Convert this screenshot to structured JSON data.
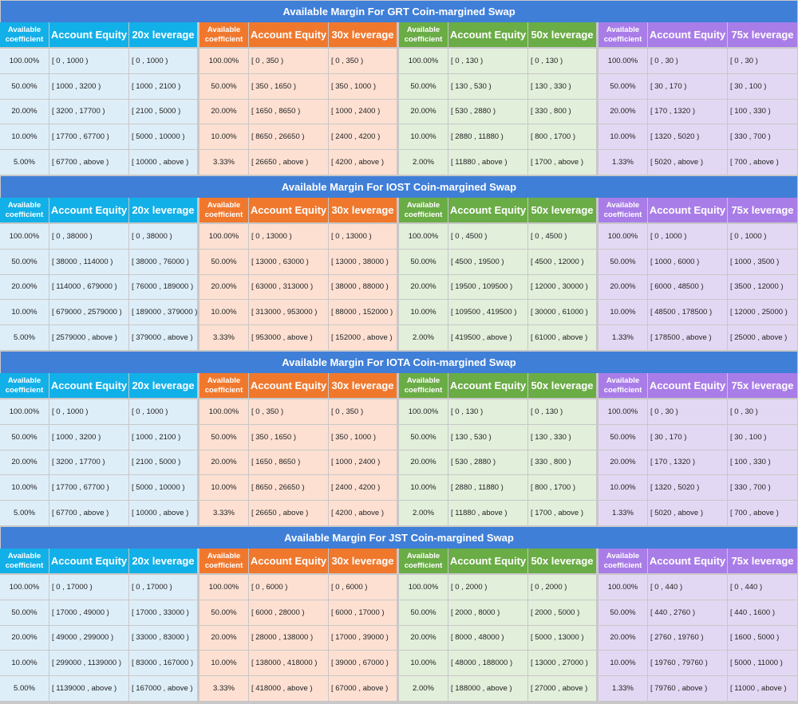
{
  "colors": {
    "title": "#3f7fd8",
    "blue": "#12b0e8",
    "orange": "#f0782d",
    "green": "#6aac45",
    "purple": "#a97de8"
  },
  "headers": {
    "coefficient": "Available coefficient",
    "equity": "Account Equity",
    "leverages": [
      "20x leverage",
      "30x leverage",
      "50x leverage",
      "75x leverage"
    ]
  },
  "sections": [
    {
      "title": "Available Margin For GRT Coin-margined Swap",
      "groups": [
        {
          "coeff": [
            "100.00%",
            "50.00%",
            "20.00%",
            "10.00%",
            "5.00%"
          ],
          "equity": [
            "[ 0 , 1000 )",
            "[ 1000 , 3200 )",
            "[ 3200 , 17700 )",
            "[ 17700 , 67700 )",
            "[ 67700 , above )"
          ],
          "lev": [
            "[ 0 , 1000 )",
            "[ 1000 , 2100 )",
            "[ 2100 , 5000 )",
            "[ 5000 , 10000 )",
            "[ 10000 , above )"
          ]
        },
        {
          "coeff": [
            "100.00%",
            "50.00%",
            "20.00%",
            "10.00%",
            "3.33%"
          ],
          "equity": [
            "[ 0 , 350 )",
            "[ 350 , 1650 )",
            "[ 1650 , 8650 )",
            "[ 8650 , 26650 )",
            "[ 26650 , above )"
          ],
          "lev": [
            "[ 0 , 350 )",
            "[ 350 , 1000 )",
            "[ 1000 , 2400 )",
            "[ 2400 , 4200 )",
            "[ 4200 , above )"
          ]
        },
        {
          "coeff": [
            "100.00%",
            "50.00%",
            "20.00%",
            "10.00%",
            "2.00%"
          ],
          "equity": [
            "[ 0 , 130 )",
            "[ 130 , 530 )",
            "[ 530 , 2880 )",
            "[ 2880 , 11880 )",
            "[ 11880 , above )"
          ],
          "lev": [
            "[ 0 , 130 )",
            "[ 130 , 330 )",
            "[ 330 , 800 )",
            "[ 800 , 1700 )",
            "[ 1700 , above )"
          ]
        },
        {
          "coeff": [
            "100.00%",
            "50.00%",
            "20.00%",
            "10.00%",
            "1.33%"
          ],
          "equity": [
            "[ 0 , 30 )",
            "[ 30 , 170 )",
            "[ 170 , 1320 )",
            "[ 1320 , 5020 )",
            "[ 5020 , above )"
          ],
          "lev": [
            "[ 0 , 30 )",
            "[ 30 , 100 )",
            "[ 100 , 330 )",
            "[ 330 , 700 )",
            "[ 700 , above )"
          ]
        }
      ]
    },
    {
      "title": "Available Margin For IOST Coin-margined Swap",
      "groups": [
        {
          "coeff": [
            "100.00%",
            "50.00%",
            "20.00%",
            "10.00%",
            "5.00%"
          ],
          "equity": [
            "[ 0 , 38000 )",
            "[ 38000 , 114000 )",
            "[ 114000 , 679000 )",
            "[ 679000 , 2579000 )",
            "[ 2579000 , above )"
          ],
          "lev": [
            "[ 0 , 38000 )",
            "[ 38000 , 76000 )",
            "[ 76000 , 189000 )",
            "[ 189000 , 379000 )",
            "[ 379000 , above )"
          ]
        },
        {
          "coeff": [
            "100.00%",
            "50.00%",
            "20.00%",
            "10.00%",
            "3.33%"
          ],
          "equity": [
            "[ 0 , 13000 )",
            "[ 13000 , 63000 )",
            "[ 63000 , 313000 )",
            "[ 313000 , 953000 )",
            "[ 953000 , above )"
          ],
          "lev": [
            "[ 0 , 13000 )",
            "[ 13000 , 38000 )",
            "[ 38000 , 88000 )",
            "[ 88000 , 152000 )",
            "[ 152000 , above )"
          ]
        },
        {
          "coeff": [
            "100.00%",
            "50.00%",
            "20.00%",
            "10.00%",
            "2.00%"
          ],
          "equity": [
            "[ 0 , 4500 )",
            "[ 4500 , 19500 )",
            "[ 19500 , 109500 )",
            "[ 109500 , 419500 )",
            "[ 419500 , above )"
          ],
          "lev": [
            "[ 0 , 4500 )",
            "[ 4500 , 12000 )",
            "[ 12000 , 30000 )",
            "[ 30000 , 61000 )",
            "[ 61000 , above )"
          ]
        },
        {
          "coeff": [
            "100.00%",
            "50.00%",
            "20.00%",
            "10.00%",
            "1.33%"
          ],
          "equity": [
            "[  0 , 1000 )",
            "[  1000 , 6000 )",
            "[  6000 , 48500 )",
            "[  48500 , 178500 )",
            "[  178500 , above )"
          ],
          "lev": [
            "[  0 , 1000 )",
            "[  1000 , 3500 )",
            "[  3500 , 12000 )",
            "[  12000 , 25000 )",
            "[  25000 , above )"
          ]
        }
      ]
    },
    {
      "title": "Available Margin For IOTA Coin-margined Swap",
      "groups": [
        {
          "coeff": [
            "100.00%",
            "50.00%",
            "20.00%",
            "10.00%",
            "5.00%"
          ],
          "equity": [
            "[ 0 ,  1000 )",
            "[ 1000 ,  3200 )",
            "[ 3200 ,  17700 )",
            "[ 17700 ,  67700 )",
            "[ 67700 ,  above )"
          ],
          "lev": [
            "[ 0 ,  1000 )",
            "[ 1000 ,  2100 )",
            "[ 2100 ,  5000 )",
            "[ 5000 ,  10000 )",
            "[ 10000 ,  above )"
          ]
        },
        {
          "coeff": [
            "100.00%",
            "50.00%",
            "20.00%",
            "10.00%",
            "3.33%"
          ],
          "equity": [
            "[ 0 ,  350 )",
            "[ 350 ,  1650 )",
            "[ 1650 ,  8650 )",
            "[ 8650 ,  26650 )",
            "[ 26650 ,  above )"
          ],
          "lev": [
            "[ 0 ,  350 )",
            "[ 350 ,  1000 )",
            "[ 1000 ,  2400 )",
            "[ 2400 ,  4200 )",
            "[ 4200 ,  above )"
          ]
        },
        {
          "coeff": [
            "100.00%",
            "50.00%",
            "20.00%",
            "10.00%",
            "2.00%"
          ],
          "equity": [
            "[ 0 ,  130 )",
            "[ 130 ,  530 )",
            "[ 530 ,  2880 )",
            "[ 2880 ,  11880 )",
            "[ 11880 ,  above )"
          ],
          "lev": [
            "[ 0 ,  130 )",
            "[ 130 ,  330 )",
            "[ 330 ,  800 )",
            "[ 800 ,  1700 )",
            "[ 1700 ,  above )"
          ]
        },
        {
          "coeff": [
            "100.00%",
            "50.00%",
            "20.00%",
            "10.00%",
            "1.33%"
          ],
          "equity": [
            "[  0 ,  30 )",
            "[  30 ,  170 )",
            "[  170 ,  1320 )",
            "[  1320 ,  5020 )",
            "[  5020 ,  above )"
          ],
          "lev": [
            "[  0 ,  30 )",
            "[  30 ,  100 )",
            "[  100 ,  330 )",
            "[  330 ,  700 )",
            "[  700 ,  above )"
          ]
        }
      ]
    },
    {
      "title": "Available Margin For JST Coin-margined Swap",
      "groups": [
        {
          "coeff": [
            "100.00%",
            "50.00%",
            "20.00%",
            "10.00%",
            "5.00%"
          ],
          "equity": [
            "[ 0 , 17000 )",
            "[ 17000 , 49000 )",
            "[ 49000 , 299000 )",
            "[ 299000 , 1139000 )",
            "[ 1139000 , above )"
          ],
          "lev": [
            "[ 0 , 17000 )",
            "[ 17000 , 33000 )",
            "[ 33000 , 83000 )",
            "[ 83000 , 167000 )",
            "[ 167000 , above )"
          ]
        },
        {
          "coeff": [
            "100.00%",
            "50.00%",
            "20.00%",
            "10.00%",
            "3.33%"
          ],
          "equity": [
            "[ 0 , 6000 )",
            "[ 6000 , 28000 )",
            "[ 28000 , 138000 )",
            "[ 138000 , 418000 )",
            "[ 418000 , above )"
          ],
          "lev": [
            "[ 0 , 6000 )",
            "[ 6000 , 17000 )",
            "[ 17000 , 39000 )",
            "[ 39000 , 67000 )",
            "[ 67000 , above )"
          ]
        },
        {
          "coeff": [
            "100.00%",
            "50.00%",
            "20.00%",
            "10.00%",
            "2.00%"
          ],
          "equity": [
            "[ 0 , 2000 )",
            "[ 2000 , 8000 )",
            "[ 8000 , 48000 )",
            "[ 48000 , 188000 )",
            "[ 188000 , above )"
          ],
          "lev": [
            "[ 0 , 2000 )",
            "[ 2000 , 5000 )",
            "[ 5000 , 13000 )",
            "[ 13000 , 27000 )",
            "[ 27000 , above )"
          ]
        },
        {
          "coeff": [
            "100.00%",
            "50.00%",
            "20.00%",
            "10.00%",
            "1.33%"
          ],
          "equity": [
            "[ 0 , 440 )",
            "[ 440 , 2760 )",
            "[ 2760 , 19760 )",
            "[ 19760 , 79760 )",
            "[ 79760 , above )"
          ],
          "lev": [
            "[ 0 , 440 )",
            "[ 440 , 1600 )",
            "[ 1600 , 5000 )",
            "[ 5000 , 11000 )",
            "[ 11000 , above )"
          ]
        }
      ]
    }
  ]
}
